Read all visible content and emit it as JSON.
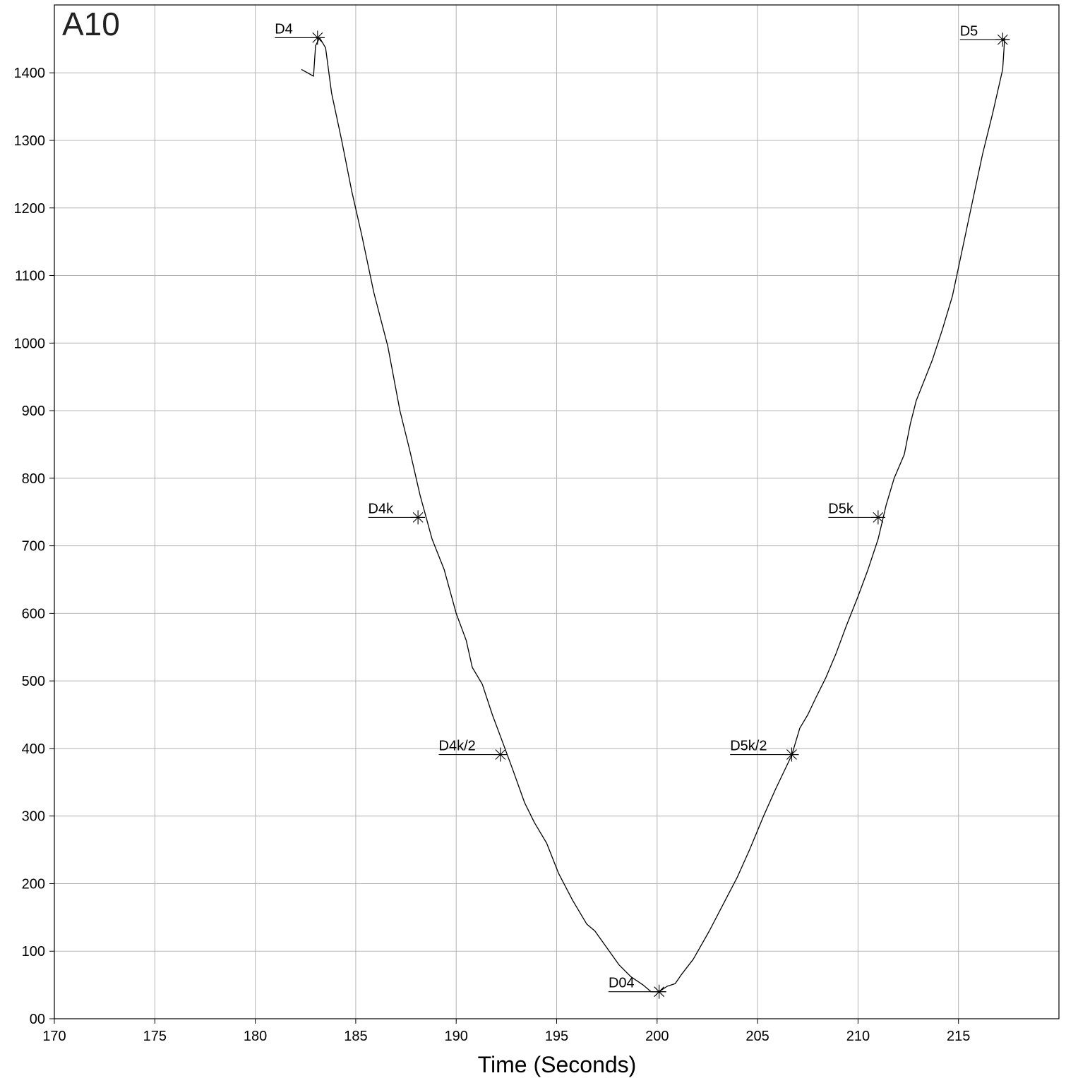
{
  "chart_data": {
    "type": "line",
    "title": "A10",
    "xlabel": "Time (Seconds)",
    "ylabel": "",
    "xlim": [
      170,
      220
    ],
    "ylim": [
      0,
      1500
    ],
    "xticks": [
      170,
      175,
      180,
      185,
      190,
      195,
      200,
      205,
      210,
      215
    ],
    "xtick_labels": [
      "170",
      "175",
      "180",
      "185",
      "190",
      "195",
      "200",
      "205",
      "210",
      "215"
    ],
    "yticks": [
      0,
      100,
      200,
      300,
      400,
      500,
      600,
      700,
      800,
      900,
      1000,
      1100,
      1200,
      1300,
      1400
    ],
    "ytick_labels": [
      "00",
      "100",
      "200",
      "300",
      "400",
      "500",
      "600",
      "700",
      "800",
      "900",
      "1000",
      "1100",
      "1200",
      "1300",
      "1400"
    ],
    "grid": true,
    "series": [
      {
        "color": "#000000",
        "x": [
          182.3,
          182.9,
          183.0,
          183.2,
          183.5,
          183.8,
          184.3,
          184.8,
          185.3,
          185.9,
          186.6,
          187.2,
          187.7,
          188.2,
          188.8,
          189.4,
          190.0,
          190.5,
          190.8,
          191.3,
          191.8,
          192.3,
          192.8,
          193.4,
          193.9,
          194.5,
          195.1,
          195.8,
          196.5,
          196.9,
          197.5,
          198.1,
          198.7,
          199.3,
          199.7,
          200.1,
          200.5,
          200.9,
          201.2,
          201.8,
          202.6,
          203.3,
          204.0,
          204.6,
          205.3,
          205.9,
          206.7,
          207.1,
          207.5,
          207.9,
          208.4,
          208.9,
          209.4,
          210.0,
          210.5,
          211.0,
          211.4,
          211.8,
          212.3,
          212.6,
          212.9,
          213.3,
          213.7,
          214.2,
          214.7,
          215.2,
          215.7,
          216.2,
          216.7,
          217.2,
          217.3
        ],
        "y": [
          1405,
          1395,
          1440,
          1452,
          1437,
          1370,
          1300,
          1225,
          1160,
          1075,
          995,
          900,
          840,
          775,
          710,
          665,
          600,
          560,
          520,
          495,
          450,
          410,
          370,
          320,
          290,
          260,
          215,
          175,
          140,
          130,
          105,
          80,
          62,
          50,
          40,
          40,
          48,
          52,
          65,
          88,
          130,
          170,
          210,
          250,
          300,
          340,
          390,
          430,
          450,
          475,
          505,
          540,
          580,
          625,
          665,
          710,
          760,
          800,
          835,
          880,
          915,
          945,
          975,
          1020,
          1070,
          1140,
          1210,
          1280,
          1340,
          1405,
          1452
        ]
      }
    ],
    "markers": [
      {
        "label": "D4",
        "x": 183.1,
        "y": 1452
      },
      {
        "label": "D4k",
        "x": 188.1,
        "y": 742
      },
      {
        "label": "D4k/2",
        "x": 192.2,
        "y": 391
      },
      {
        "label": "D04",
        "x": 200.1,
        "y": 40
      },
      {
        "label": "D5k/2",
        "x": 206.7,
        "y": 391
      },
      {
        "label": "D5k",
        "x": 211.0,
        "y": 742
      },
      {
        "label": "D5",
        "x": 217.2,
        "y": 1449
      }
    ]
  }
}
